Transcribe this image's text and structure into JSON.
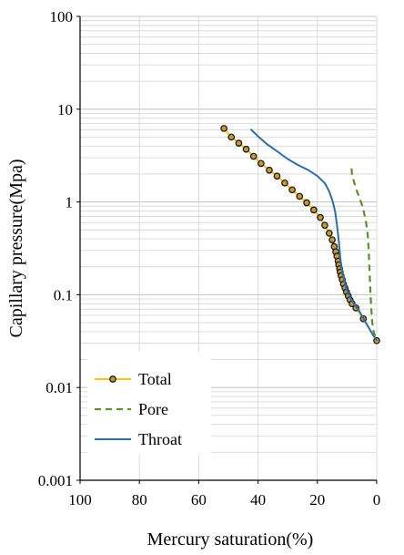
{
  "chart_data": {
    "type": "line",
    "xlabel": "Mercury saturation(%)",
    "ylabel": "Capillary pressure(Mpa)",
    "x_reversed": true,
    "xlim": [
      100,
      0
    ],
    "ylim": [
      0.001,
      100
    ],
    "y_scale": "log",
    "x_ticks": [
      "100",
      "80",
      "60",
      "40",
      "20",
      "0"
    ],
    "y_ticks": [
      "100",
      "10",
      "1",
      "0.1",
      "0.01",
      "0.001"
    ],
    "grid": true,
    "legend_position": "bottom-left",
    "series": [
      {
        "name": "Total",
        "color": "#f5c518",
        "marker_fill": "#c7983a",
        "marker_stroke": "#1a1a1a",
        "style": "solid-with-markers",
        "x": [
          51.5,
          49.0,
          46.5,
          44.0,
          41.5,
          39.0,
          36.2,
          33.6,
          31.0,
          28.5,
          26.0,
          23.6,
          21.2,
          19.0,
          17.5,
          16.0,
          15.0,
          14.3,
          13.8,
          13.4,
          13.0,
          12.8,
          12.5,
          12.3,
          12.0,
          11.6,
          11.2,
          10.7,
          10.2,
          9.6,
          9.0,
          8.3,
          7.0,
          4.5,
          0.0
        ],
        "y": [
          6.2,
          5.0,
          4.3,
          3.7,
          3.1,
          2.6,
          2.2,
          1.9,
          1.6,
          1.35,
          1.15,
          0.98,
          0.82,
          0.68,
          0.56,
          0.46,
          0.39,
          0.33,
          0.29,
          0.26,
          0.23,
          0.21,
          0.19,
          0.175,
          0.16,
          0.145,
          0.13,
          0.118,
          0.107,
          0.097,
          0.088,
          0.08,
          0.072,
          0.055,
          0.032
        ]
      },
      {
        "name": "Pore",
        "color": "#5f8f2f",
        "style": "dashed",
        "x": [
          8.5,
          8.3,
          7.8,
          7.0,
          6.0,
          4.9,
          4.2,
          3.6,
          3.2,
          2.9,
          2.7,
          2.5,
          2.3,
          2.1,
          1.8,
          1.5,
          1.0,
          0.5,
          0.0
        ],
        "y": [
          2.3,
          2.0,
          1.7,
          1.4,
          1.15,
          0.92,
          0.75,
          0.6,
          0.5,
          0.4,
          0.3,
          0.22,
          0.15,
          0.1,
          0.07,
          0.05,
          0.04,
          0.035,
          0.032
        ]
      },
      {
        "name": "Throat",
        "color": "#2e6ea6",
        "style": "solid",
        "x": [
          42.5,
          40.0,
          37.0,
          33.5,
          30.0,
          26.5,
          23.0,
          20.0,
          17.5,
          16.0,
          14.8,
          14.0,
          13.5,
          13.1,
          12.8,
          12.5,
          12.2,
          11.9,
          11.5,
          11.0,
          10.5,
          10.0,
          9.3,
          8.5,
          7.5,
          6.0,
          4.0,
          1.5,
          0.0
        ],
        "y": [
          6.1,
          5.1,
          4.2,
          3.5,
          2.9,
          2.5,
          2.2,
          1.9,
          1.6,
          1.3,
          1.0,
          0.78,
          0.6,
          0.47,
          0.38,
          0.3,
          0.24,
          0.2,
          0.17,
          0.145,
          0.125,
          0.11,
          0.098,
          0.088,
          0.078,
          0.068,
          0.052,
          0.038,
          0.032
        ]
      }
    ]
  }
}
